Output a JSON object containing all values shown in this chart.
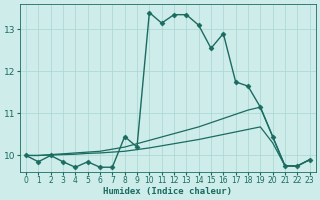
{
  "xlabel": "Humidex (Indice chaleur)",
  "xlim": [
    -0.5,
    23.5
  ],
  "ylim": [
    9.6,
    13.6
  ],
  "yticks": [
    10,
    11,
    12,
    13
  ],
  "xticks": [
    0,
    1,
    2,
    3,
    4,
    5,
    6,
    7,
    8,
    9,
    10,
    11,
    12,
    13,
    14,
    15,
    16,
    17,
    18,
    19,
    20,
    21,
    22,
    23
  ],
  "bg_color": "#ceecea",
  "grid_color": "#aed8d4",
  "line_color": "#1a6b60",
  "series1": {
    "x": [
      0,
      1,
      2,
      3,
      4,
      5,
      6,
      7,
      8,
      9,
      10,
      11,
      12,
      13,
      14,
      15,
      16,
      17,
      18,
      19,
      20,
      21,
      22,
      23
    ],
    "y": [
      10.0,
      9.85,
      10.0,
      9.85,
      9.72,
      9.85,
      9.72,
      9.72,
      10.45,
      10.2,
      13.4,
      13.15,
      13.35,
      13.35,
      13.1,
      12.55,
      12.9,
      11.75,
      11.65,
      11.15,
      10.45,
      9.75,
      9.75,
      9.9
    ],
    "marker": "D",
    "markersize": 2.5,
    "linewidth": 1.0
  },
  "series2": {
    "x": [
      0,
      1,
      2,
      3,
      4,
      5,
      6,
      7,
      8,
      9,
      10,
      11,
      12,
      13,
      14,
      15,
      16,
      17,
      18,
      19,
      20,
      21,
      22,
      23
    ],
    "y": [
      10.0,
      10.0,
      10.02,
      10.04,
      10.06,
      10.08,
      10.1,
      10.15,
      10.2,
      10.28,
      10.36,
      10.44,
      10.52,
      10.6,
      10.68,
      10.78,
      10.88,
      10.98,
      11.08,
      11.15,
      10.45,
      9.75,
      9.75,
      9.9
    ],
    "linewidth": 0.9
  },
  "series3": {
    "x": [
      0,
      1,
      2,
      3,
      4,
      5,
      6,
      7,
      8,
      9,
      10,
      11,
      12,
      13,
      14,
      15,
      16,
      17,
      18,
      19,
      20,
      21,
      22,
      23
    ],
    "y": [
      10.0,
      10.0,
      10.01,
      10.02,
      10.03,
      10.05,
      10.06,
      10.08,
      10.1,
      10.14,
      10.18,
      10.23,
      10.28,
      10.33,
      10.38,
      10.44,
      10.5,
      10.56,
      10.62,
      10.68,
      10.3,
      9.75,
      9.75,
      9.9
    ],
    "linewidth": 0.9
  }
}
